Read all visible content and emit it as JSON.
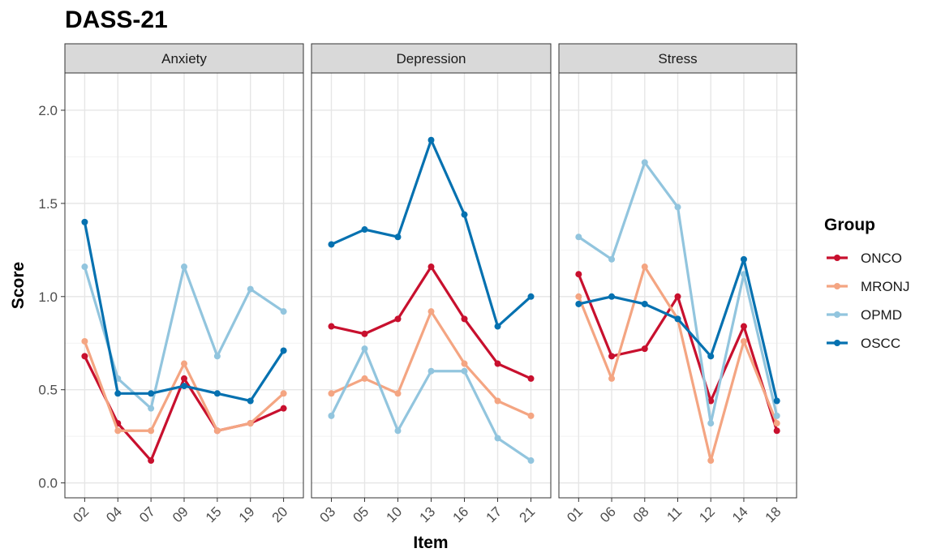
{
  "chart_data": {
    "type": "line",
    "title": "DASS-21",
    "xlabel": "Item",
    "ylabel": "Score",
    "ylim": [
      -0.08,
      2.2
    ],
    "yticks": [
      "0.0",
      "0.5",
      "1.0",
      "1.5",
      "2.0"
    ],
    "ytick_values": [
      0,
      0.5,
      1.0,
      1.5,
      2.0
    ],
    "grid": true,
    "legend": {
      "title": "Group",
      "position": "right"
    },
    "series_styles": [
      {
        "name": "ONCO",
        "color": "#C8102E"
      },
      {
        "name": "MRONJ",
        "color": "#F4A582"
      },
      {
        "name": "OPMD",
        "color": "#92C5DE"
      },
      {
        "name": "OSCC",
        "color": "#0571B0"
      }
    ],
    "panels": [
      {
        "strip": "Anxiety",
        "categories": [
          "02",
          "04",
          "07",
          "09",
          "15",
          "19",
          "20"
        ],
        "series": [
          {
            "name": "ONCO",
            "values": [
              0.68,
              0.32,
              0.12,
              0.56,
              0.28,
              0.32,
              0.4
            ]
          },
          {
            "name": "MRONJ",
            "values": [
              0.76,
              0.28,
              0.28,
              0.64,
              0.28,
              0.32,
              0.48
            ]
          },
          {
            "name": "OPMD",
            "values": [
              1.16,
              0.56,
              0.4,
              1.16,
              0.68,
              1.04,
              0.92
            ]
          },
          {
            "name": "OSCC",
            "values": [
              1.4,
              0.48,
              0.48,
              0.52,
              0.48,
              0.44,
              0.71
            ]
          }
        ]
      },
      {
        "strip": "Depression",
        "categories": [
          "03",
          "05",
          "10",
          "13",
          "16",
          "17",
          "21"
        ],
        "series": [
          {
            "name": "ONCO",
            "values": [
              0.84,
              0.8,
              0.88,
              1.16,
              0.88,
              0.64,
              0.56
            ]
          },
          {
            "name": "MRONJ",
            "values": [
              0.48,
              0.56,
              0.48,
              0.92,
              0.64,
              0.44,
              0.36
            ]
          },
          {
            "name": "OPMD",
            "values": [
              0.36,
              0.72,
              0.28,
              0.6,
              0.6,
              0.24,
              0.12
            ]
          },
          {
            "name": "OSCC",
            "values": [
              1.28,
              1.36,
              1.32,
              1.84,
              1.44,
              0.84,
              1.0
            ]
          }
        ]
      },
      {
        "strip": "Stress",
        "categories": [
          "01",
          "06",
          "08",
          "11",
          "12",
          "14",
          "18"
        ],
        "series": [
          {
            "name": "ONCO",
            "values": [
              1.12,
              0.68,
              0.72,
              1.0,
              0.44,
              0.84,
              0.28
            ]
          },
          {
            "name": "MRONJ",
            "values": [
              1.0,
              0.56,
              1.16,
              0.88,
              0.12,
              0.76,
              0.32
            ]
          },
          {
            "name": "OPMD",
            "values": [
              1.32,
              1.2,
              1.72,
              1.48,
              0.32,
              1.12,
              0.36
            ]
          },
          {
            "name": "OSCC",
            "values": [
              0.96,
              1.0,
              0.96,
              0.88,
              0.68,
              1.2,
              0.44
            ]
          }
        ]
      }
    ]
  }
}
